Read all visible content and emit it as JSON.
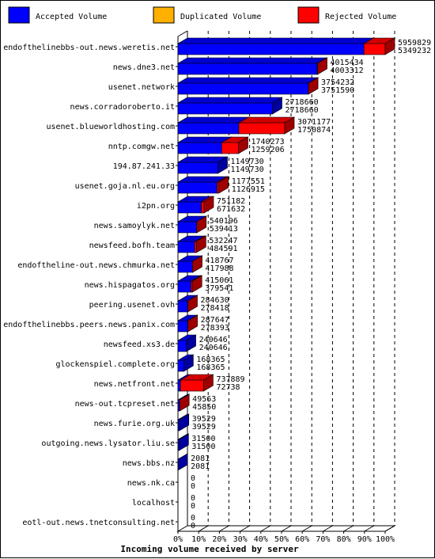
{
  "legend": [
    {
      "label": "Accepted Volume",
      "color": "#0000ff"
    },
    {
      "label": "Duplicated Volume",
      "color": "#ffb000"
    },
    {
      "label": "Rejected Volume",
      "color": "#ff0000"
    }
  ],
  "chart_data": {
    "type": "bar",
    "orientation": "horizontal",
    "stacked": true,
    "xlabel": "Incoming volume received by server",
    "xticks": [
      "0%",
      "10%",
      "20%",
      "30%",
      "40%",
      "50%",
      "60%",
      "70%",
      "80%",
      "90%",
      "100%"
    ],
    "xlim": [
      0,
      5959829
    ],
    "colors": {
      "accepted": "#0000ff",
      "duplicated": "#ffb000",
      "rejected": "#ff0000"
    },
    "categories": [
      "endofthelinebbs-out.news.weretis.net",
      "news.dne3.net",
      "usenet.network",
      "news.corradoroberto.it",
      "usenet.blueworldhosting.com",
      "nntp.comgw.net",
      "194.87.241.33",
      "usenet.goja.nl.eu.org",
      "i2pn.org",
      "news.samoylyk.net",
      "newsfeed.bofh.team",
      "endoftheline-out.news.chmurka.net",
      "news.hispagatos.org",
      "peering.usenet.ovh",
      "endofthelinebbs.peers.news.panix.com",
      "newsfeed.xs3.de",
      "glockenspiel.complete.org",
      "news.netfront.net",
      "news-out.tcpreset.net",
      "news.furie.org.uk",
      "outgoing.news.lysator.liu.se",
      "news.bbs.nz",
      "news.nk.ca",
      "localhost",
      "eotl-out.news.tnetconsulting.net"
    ],
    "series": [
      {
        "name": "Accepted Volume",
        "values": [
          5349232,
          4003312,
          3751590,
          2718660,
          1750874,
          1259206,
          1149730,
          1126915,
          671632,
          539413,
          484591,
          417988,
          379541,
          278418,
          278393,
          240646,
          168365,
          72738,
          45850,
          39529,
          31500,
          2081,
          0,
          0,
          0
        ]
      },
      {
        "name": "Duplicated Volume",
        "values": [
          0,
          0,
          0,
          0,
          0,
          0,
          0,
          0,
          0,
          0,
          0,
          0,
          0,
          0,
          0,
          0,
          0,
          0,
          0,
          0,
          0,
          0,
          0,
          0,
          0
        ]
      },
      {
        "name": "Rejected Volume",
        "values": [
          610597,
          12122,
          2642,
          0,
          1320303,
          481067,
          0,
          50636,
          79550,
          783,
          47656,
          779,
          35520,
          6212,
          9254,
          0,
          0,
          665151,
          3713,
          0,
          0,
          0,
          0,
          0,
          0
        ]
      }
    ],
    "totals": [
      "5959829",
      "4015434",
      "3754232",
      "2718660",
      "3071177",
      "1740273",
      "1149730",
      "1177551",
      "751182",
      "540196",
      "532247",
      "418767",
      "415061",
      "284630",
      "287647",
      "240646",
      "168365",
      "737889",
      "49563",
      "39529",
      "31500",
      "2081",
      "0",
      "0",
      "0"
    ],
    "accepted_labels": [
      "5349232",
      "4003312",
      "3751590",
      "2718660",
      "1750874",
      "1259206",
      "1149730",
      "1126915",
      "671632",
      "539413",
      "484591",
      "417988",
      "379541",
      "278418",
      "278393",
      "240646",
      "168365",
      "72738",
      "45850",
      "39529",
      "31500",
      "2081",
      "0",
      "0",
      "0"
    ]
  }
}
